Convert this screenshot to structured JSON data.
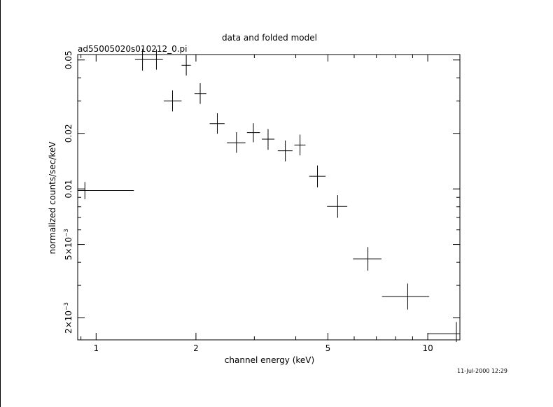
{
  "timestamp": "11-Jul-2000 12:29",
  "chart_data": {
    "type": "scatter",
    "title": "data and folded model",
    "subtitle": "ad55005020s010212_0.pi",
    "xlabel": "channel energy (keV)",
    "ylabel": "normalized counts/sec/keV",
    "x_scale": "log",
    "y_scale": "log",
    "xlim": [
      0.88,
      12.5
    ],
    "ylim": [
      0.00152,
      0.0535
    ],
    "x_tick_labels": [
      {
        "value": 1,
        "label": "1"
      },
      {
        "value": 2,
        "label": "2"
      },
      {
        "value": 5,
        "label": "5"
      },
      {
        "value": 10,
        "label": "10"
      }
    ],
    "y_tick_labels": [
      {
        "value": 0.05,
        "label": "0.05"
      },
      {
        "value": 0.02,
        "label": "0.02"
      },
      {
        "value": 0.01,
        "label": "0.01"
      },
      {
        "value": 0.005,
        "label": "5×10",
        "exp": "−3"
      },
      {
        "value": 0.002,
        "label": "2×10",
        "exp": "−3"
      }
    ],
    "points": [
      {
        "x": 0.925,
        "xlo": 0.88,
        "xhi": 1.3,
        "y": 0.0098,
        "ylo": 0.0088,
        "yhi": 0.0109
      },
      {
        "x": 1.38,
        "xlo": 1.31,
        "xhi": 1.45,
        "y": 0.0503,
        "ylo": 0.0438,
        "yhi": 0.0575
      },
      {
        "x": 1.52,
        "xlo": 1.45,
        "xhi": 1.59,
        "y": 0.0503,
        "ylo": 0.0443,
        "yhi": 0.0571
      },
      {
        "x": 1.7,
        "xlo": 1.6,
        "xhi": 1.81,
        "y": 0.03,
        "ylo": 0.0263,
        "yhi": 0.0342
      },
      {
        "x": 1.87,
        "xlo": 1.81,
        "xhi": 1.93,
        "y": 0.0468,
        "ylo": 0.0412,
        "yhi": 0.0531
      },
      {
        "x": 2.06,
        "xlo": 1.98,
        "xhi": 2.15,
        "y": 0.0329,
        "ylo": 0.0289,
        "yhi": 0.0374
      },
      {
        "x": 2.32,
        "xlo": 2.2,
        "xhi": 2.44,
        "y": 0.0226,
        "ylo": 0.0199,
        "yhi": 0.0257
      },
      {
        "x": 2.65,
        "xlo": 2.48,
        "xhi": 2.82,
        "y": 0.0178,
        "ylo": 0.0157,
        "yhi": 0.0203
      },
      {
        "x": 2.98,
        "xlo": 2.85,
        "xhi": 3.12,
        "y": 0.0202,
        "ylo": 0.0179,
        "yhi": 0.0227
      },
      {
        "x": 3.3,
        "xlo": 3.16,
        "xhi": 3.45,
        "y": 0.0186,
        "ylo": 0.0163,
        "yhi": 0.0211
      },
      {
        "x": 3.72,
        "xlo": 3.53,
        "xhi": 3.91,
        "y": 0.0161,
        "ylo": 0.0141,
        "yhi": 0.0183
      },
      {
        "x": 4.12,
        "xlo": 3.96,
        "xhi": 4.28,
        "y": 0.0173,
        "ylo": 0.0152,
        "yhi": 0.0197
      },
      {
        "x": 4.65,
        "xlo": 4.39,
        "xhi": 4.92,
        "y": 0.0117,
        "ylo": 0.0102,
        "yhi": 0.0134
      },
      {
        "x": 5.35,
        "xlo": 4.97,
        "xhi": 5.72,
        "y": 0.00803,
        "ylo": 0.00697,
        "yhi": 0.00925
      },
      {
        "x": 6.6,
        "xlo": 5.95,
        "xhi": 7.25,
        "y": 0.00418,
        "ylo": 0.00361,
        "yhi": 0.00484
      },
      {
        "x": 8.7,
        "xlo": 7.28,
        "xhi": 10.1,
        "y": 0.00261,
        "ylo": 0.00222,
        "yhi": 0.00307
      },
      {
        "x": 12.2,
        "xlo": 10.02,
        "xhi": 12.5,
        "y": 0.00164,
        "ylo": 0.00148,
        "yhi": 0.0019
      }
    ]
  }
}
